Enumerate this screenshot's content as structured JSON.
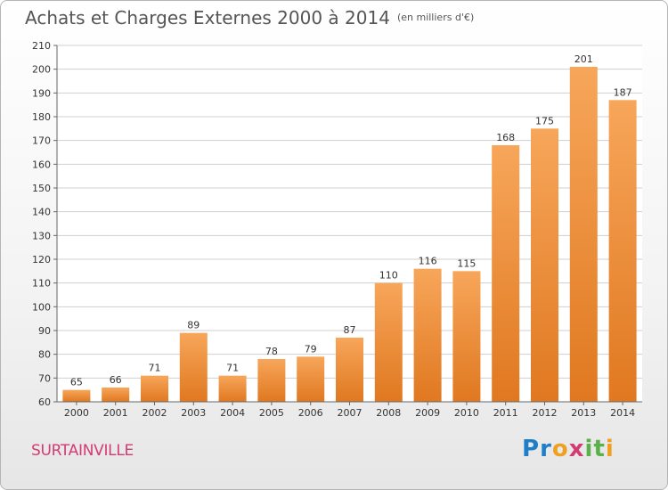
{
  "title": "Achats et Charges Externes 2000 à 2014",
  "unit": "(en milliers d'€)",
  "commune": "SURTAINVILLE",
  "logo": {
    "letters": [
      "P",
      "r",
      "o",
      "x",
      "i",
      "t",
      "i"
    ],
    "colors": [
      "#1e7fc8",
      "#1e7fc8",
      "#f0a020",
      "#d23c72",
      "#5ab04a",
      "#5ab04a",
      "#f0a020"
    ]
  },
  "colors": {
    "bar_light": "#f7a65a",
    "bar_dark": "#e07820",
    "grid": "#cfcfcf"
  },
  "chart_data": {
    "type": "bar",
    "categories": [
      "2000",
      "2001",
      "2002",
      "2003",
      "2004",
      "2005",
      "2006",
      "2007",
      "2008",
      "2009",
      "2010",
      "2011",
      "2012",
      "2013",
      "2014"
    ],
    "values": [
      65,
      66,
      71,
      89,
      71,
      78,
      79,
      87,
      110,
      116,
      115,
      168,
      175,
      201,
      187
    ],
    "ylim": [
      60,
      210
    ],
    "yticks": [
      60,
      70,
      80,
      90,
      100,
      110,
      120,
      130,
      140,
      150,
      160,
      170,
      180,
      190,
      200,
      210
    ],
    "grid": true,
    "xlabel": "",
    "ylabel": ""
  }
}
